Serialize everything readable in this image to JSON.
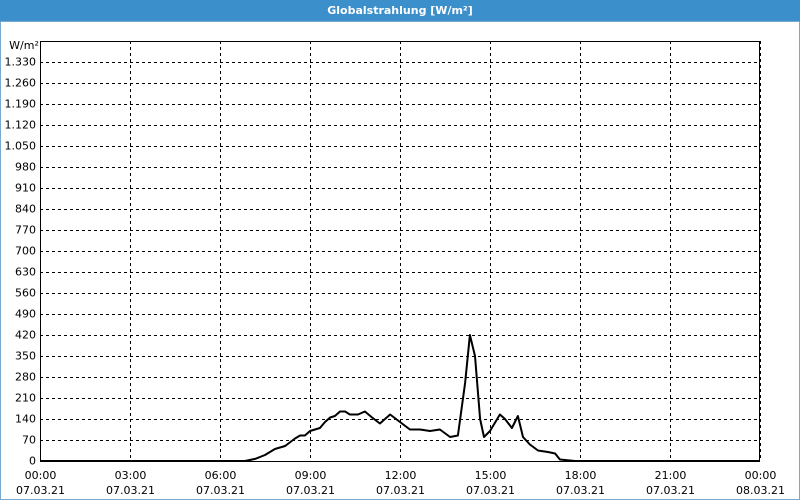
{
  "chart_data": {
    "type": "line",
    "title": "Globalstrahlung [W/m²]",
    "y_label": "W/m²",
    "x": [
      0,
      6.83,
      7.17,
      7.5,
      7.83,
      8.17,
      8.5,
      8.67,
      8.83,
      9.0,
      9.33,
      9.5,
      9.67,
      9.83,
      10.0,
      10.17,
      10.33,
      10.6,
      10.83,
      11.07,
      11.33,
      11.67,
      12.0,
      12.33,
      12.67,
      13.0,
      13.33,
      13.67,
      13.93,
      14.17,
      14.33,
      14.5,
      14.67,
      14.8,
      15.0,
      15.33,
      15.5,
      15.73,
      15.93,
      16.1,
      16.33,
      16.6,
      16.93,
      17.17,
      17.33,
      17.83,
      24
    ],
    "values": [
      0,
      0,
      7,
      20,
      40,
      50,
      75,
      85,
      85,
      100,
      110,
      130,
      145,
      150,
      165,
      165,
      155,
      155,
      165,
      145,
      125,
      155,
      130,
      105,
      105,
      100,
      105,
      80,
      85,
      260,
      420,
      350,
      140,
      80,
      100,
      155,
      140,
      110,
      150,
      80,
      55,
      35,
      30,
      25,
      5,
      0,
      0
    ],
    "color": "#000000",
    "xlim": [
      0,
      24
    ],
    "xticks": [
      {
        "value": 0,
        "label": "00:00",
        "date": "07.03.21"
      },
      {
        "value": 3,
        "label": "03:00",
        "date": "07.03.21"
      },
      {
        "value": 6,
        "label": "06:00",
        "date": "07.03.21"
      },
      {
        "value": 9,
        "label": "09:00",
        "date": "07.03.21"
      },
      {
        "value": 12,
        "label": "12:00",
        "date": "07.03.21"
      },
      {
        "value": 15,
        "label": "15:00",
        "date": "07.03.21"
      },
      {
        "value": 18,
        "label": "18:00",
        "date": "07.03.21"
      },
      {
        "value": 21,
        "label": "21:00",
        "date": "07.03.21"
      },
      {
        "value": 24,
        "label": "00:00",
        "date": "08.03.21"
      }
    ],
    "ylim": [
      0,
      1400
    ],
    "yticks": [
      0,
      70,
      140,
      210,
      280,
      350,
      420,
      490,
      560,
      630,
      700,
      770,
      840,
      910,
      980,
      {
        "value": 1050,
        "label": "1.050"
      },
      {
        "value": 1120,
        "label": "1.120"
      },
      {
        "value": 1190,
        "label": "1.190"
      },
      {
        "value": 1260,
        "label": "1.260"
      },
      {
        "value": 1330,
        "label": "1.330"
      }
    ],
    "grid": true
  }
}
